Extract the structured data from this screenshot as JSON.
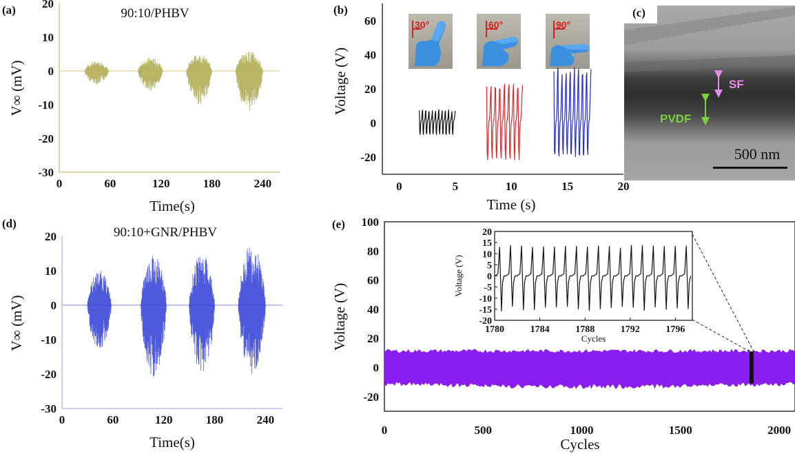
{
  "chart_data": [
    {
      "id": "a",
      "panel_label": "(a)",
      "type": "line",
      "title": "90:10/PHBV",
      "xlabel": "Time(s)",
      "ylabel": "V∞ (mV)",
      "xlim": [
        0,
        260
      ],
      "ylim": [
        -30,
        20
      ],
      "x_ticks": [
        "0",
        "60",
        "120",
        "180",
        "240"
      ],
      "y_ticks": [
        "20",
        "10",
        "0",
        "-10",
        "-20",
        "-30"
      ],
      "color": "#b5b15e",
      "bursts": [
        {
          "start": 30,
          "end": 58,
          "max": 3,
          "min": -4
        },
        {
          "start": 93,
          "end": 122,
          "max": 4,
          "min": -6
        },
        {
          "start": 150,
          "end": 180,
          "max": 5,
          "min": -10
        },
        {
          "start": 208,
          "end": 240,
          "max": 6,
          "min": -12
        }
      ]
    },
    {
      "id": "b",
      "panel_label": "(b)",
      "type": "line",
      "xlabel": "Time (s)",
      "ylabel": "Voltage (V)",
      "xlim": [
        -1.5,
        20
      ],
      "ylim": [
        -30,
        70
      ],
      "x_ticks": [
        "0",
        "5",
        "10",
        "15",
        "20"
      ],
      "y_ticks": [
        "60",
        "40",
        "20",
        "0",
        "-20"
      ],
      "insets": [
        "30°",
        "60°",
        "90°"
      ],
      "series": [
        {
          "color": "#111111",
          "start": 1.8,
          "end": 5,
          "peaks": 11,
          "max": 8,
          "min": -7
        },
        {
          "color": "#d42a2a",
          "start": 7.8,
          "end": 11,
          "peaks": 8,
          "max": 23,
          "min": -22
        },
        {
          "color": "#2530b5",
          "start": 13.8,
          "end": 17.1,
          "peaks": 9,
          "max": 33,
          "min": -20
        }
      ]
    },
    {
      "id": "d",
      "panel_label": "(d)",
      "type": "line",
      "title": "90:10+GNR/PHBV",
      "xlabel": "Time(s)",
      "ylabel": "V∞ (mV)",
      "xlim": [
        0,
        260
      ],
      "ylim": [
        -30,
        20
      ],
      "x_ticks": [
        "0",
        "60",
        "120",
        "180",
        "240"
      ],
      "y_ticks": [
        "20",
        "10",
        "0",
        "-10",
        "-20",
        "-30"
      ],
      "color": "#2f3dd6",
      "bursts": [
        {
          "start": 30,
          "end": 58,
          "max": 10,
          "min": -13
        },
        {
          "start": 93,
          "end": 123,
          "max": 15,
          "min": -21
        },
        {
          "start": 150,
          "end": 180,
          "max": 15,
          "min": -20
        },
        {
          "start": 208,
          "end": 240,
          "max": 18,
          "min": -20
        }
      ]
    },
    {
      "id": "e",
      "panel_label": "(e)",
      "type": "area",
      "xlabel": "Cycles",
      "ylabel": "Voltage (V)",
      "xlim": [
        0,
        2080
      ],
      "ylim": [
        -30,
        100
      ],
      "x_ticks": [
        "0",
        "500",
        "1000",
        "1500",
        "2000"
      ],
      "y_ticks": [
        "100",
        "80",
        "60",
        "40",
        "20",
        "0",
        "-20"
      ],
      "color": "#8a1ef0",
      "band": {
        "max": 12,
        "min": -17
      },
      "highlight_x": 1860,
      "inset": {
        "xlabel": "Cycles",
        "ylabel": "Voltage (V)",
        "xlim": [
          1780,
          1797.5
        ],
        "ylim": [
          -20,
          20
        ],
        "x_ticks": [
          "1780",
          "1784",
          "1788",
          "1792",
          "1796"
        ],
        "y_ticks": [
          "20",
          "15",
          "10",
          "5",
          "0",
          "-5",
          "-10",
          "-15",
          "-20"
        ],
        "peaks": 18,
        "max": 14,
        "min": -16
      }
    }
  ],
  "tem": {
    "panel_label": "(c)",
    "sf_label": "SF",
    "pvdf_label": "PVDF",
    "scale_label": "500 nm"
  }
}
